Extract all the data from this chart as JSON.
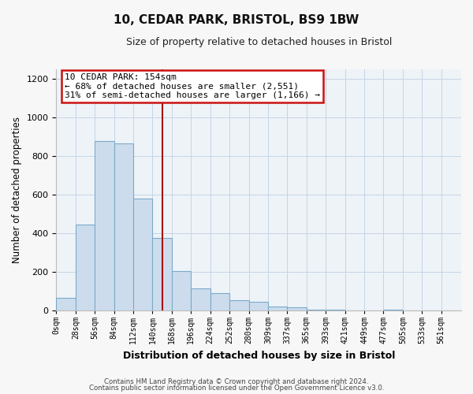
{
  "title_line1": "10, CEDAR PARK, BRISTOL, BS9 1BW",
  "title_line2": "Size of property relative to detached houses in Bristol",
  "xlabel": "Distribution of detached houses by size in Bristol",
  "ylabel": "Number of detached properties",
  "bar_labels": [
    "0sqm",
    "28sqm",
    "56sqm",
    "84sqm",
    "112sqm",
    "140sqm",
    "168sqm",
    "196sqm",
    "224sqm",
    "252sqm",
    "280sqm",
    "309sqm",
    "337sqm",
    "365sqm",
    "393sqm",
    "421sqm",
    "449sqm",
    "477sqm",
    "505sqm",
    "533sqm",
    "561sqm"
  ],
  "bar_values": [
    65,
    445,
    880,
    865,
    580,
    375,
    205,
    115,
    90,
    55,
    45,
    20,
    18,
    5,
    2,
    0,
    0,
    5,
    0,
    0,
    0
  ],
  "bar_color": "#cddcec",
  "bar_edge_color": "#7aaacb",
  "bg_color": "#eef3f8",
  "fig_bg_color": "#f7f7f7",
  "grid_color": "#c5d5e5",
  "annotation_text_line1": "10 CEDAR PARK: 154sqm",
  "annotation_text_line2": "← 68% of detached houses are smaller (2,551)",
  "annotation_text_line3": "31% of semi-detached houses are larger (1,166) →",
  "annotation_box_facecolor": "#ffffff",
  "annotation_box_edgecolor": "#cc1111",
  "vline_color": "#aa1111",
  "vline_x": 154,
  "ylim": [
    0,
    1250
  ],
  "xlim_min": 0,
  "xlim_max": 589,
  "bin_width": 28,
  "yticks": [
    0,
    200,
    400,
    600,
    800,
    1000,
    1200
  ],
  "footer_line1": "Contains HM Land Registry data © Crown copyright and database right 2024.",
  "footer_line2": "Contains public sector information licensed under the Open Government Licence v3.0."
}
